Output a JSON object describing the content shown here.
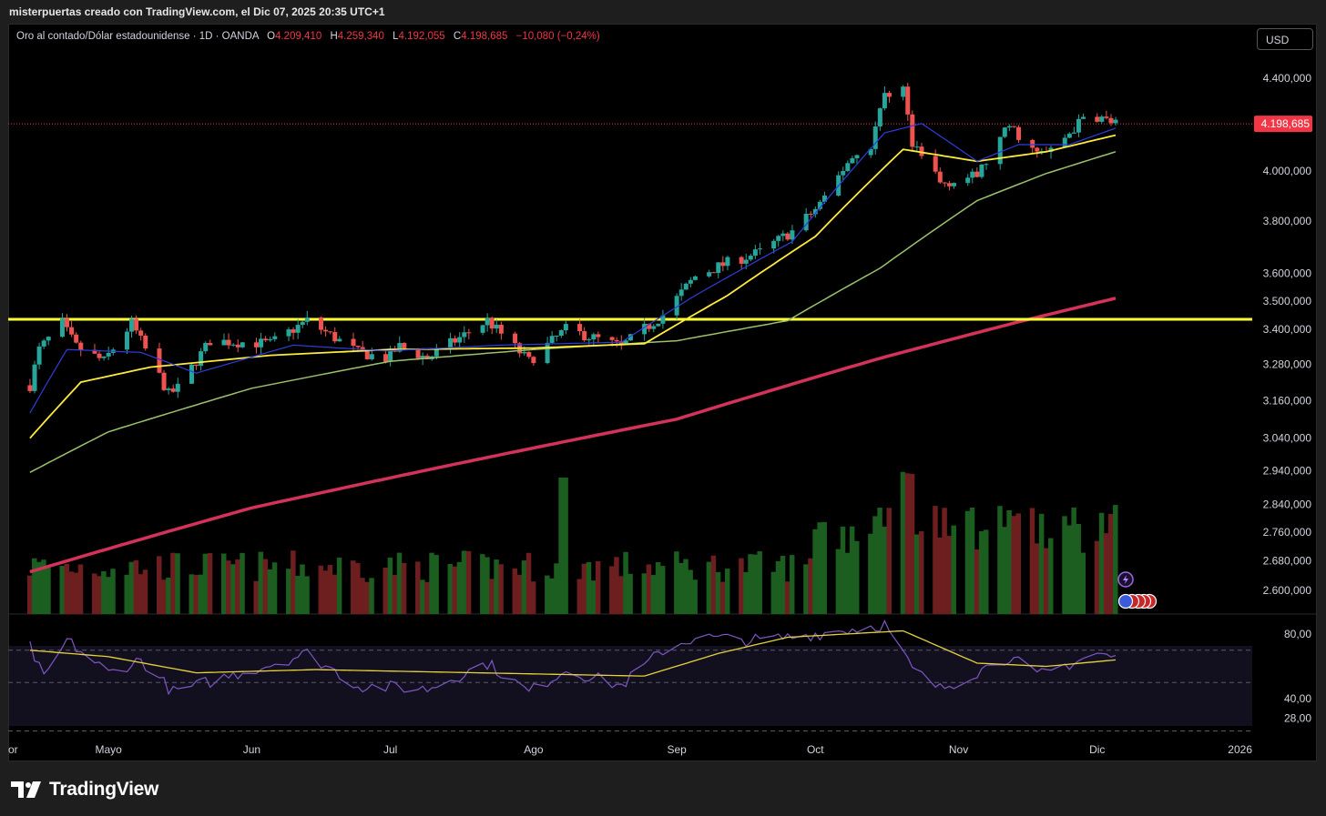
{
  "header": {
    "credit": "misterpuertas creado con TradingView.com, el Dic 07, 2025 20:35 UTC+1"
  },
  "legend": {
    "symbol": "Oro al contado/Dólar estadounidense · 1D · OANDA",
    "o_label": "O",
    "o_value": "4.209,410",
    "h_label": "H",
    "h_value": "4.259,340",
    "l_label": "L",
    "l_value": "4.192,055",
    "c_label": "C",
    "c_value": "4.198,685",
    "change": "−10,080 (−0,24%)"
  },
  "currency_button": "USD",
  "footer": {
    "brand": "TradingView"
  },
  "colors": {
    "up": "#26a69a",
    "down": "#ef5350",
    "vol_up": "#1b5e20",
    "vol_down": "#6d1f1f",
    "ema_fast": "#2f3ddc",
    "ema_mid": "#ffeb3b",
    "ema_slow": "#9bc26b",
    "sma_long": "#d3325a",
    "hline": "#ffff33",
    "rsi": "#7e57c2",
    "rsi_ma": "#e6d23a",
    "price_badge": "#f23645"
  },
  "chart_data": [
    {
      "type": "candlestick",
      "title": "Oro al contado/Dólar estadounidense · 1D · OANDA",
      "y_scale": "log",
      "ylim": [
        2560,
        4500
      ],
      "y_ticks": [
        "4.400,000",
        "4.000,000",
        "3.800,000",
        "3.600,000",
        "3.500,000",
        "3.400,000",
        "3.280,000",
        "3.160,000",
        "3.040,000",
        "2.940,000",
        "2.840,000",
        "2.760,000",
        "2.680,000",
        "2.600,000"
      ],
      "y_tick_values": [
        4400,
        4000,
        3800,
        3600,
        3500,
        3400,
        3280,
        3160,
        3040,
        2940,
        2840,
        2760,
        2680,
        2600
      ],
      "x_labels": [
        "or",
        "Mayo",
        "Jun",
        "Jul",
        "Ago",
        "Sep",
        "Oct",
        "Nov",
        "Dic",
        "2026"
      ],
      "last_price": 4198.685,
      "last_price_label": "4.198,685",
      "horizontal_line": 3435,
      "close_keypoints": [
        [
          "2025-04-14",
          3210
        ],
        [
          "2025-04-16",
          3330
        ],
        [
          "2025-04-21",
          3420
        ],
        [
          "2025-04-22",
          3390
        ],
        [
          "2025-04-24",
          3340
        ],
        [
          "2025-04-30",
          3290
        ],
        [
          "2025-05-06",
          3420
        ],
        [
          "2025-05-14",
          3180
        ],
        [
          "2025-05-16",
          3200
        ],
        [
          "2025-05-23",
          3360
        ],
        [
          "2025-06-05",
          3350
        ],
        [
          "2025-06-13",
          3430
        ],
        [
          "2025-06-24",
          3320
        ],
        [
          "2025-06-30",
          3300
        ],
        [
          "2025-07-03",
          3340
        ],
        [
          "2025-07-09",
          3300
        ],
        [
          "2025-07-22",
          3430
        ],
        [
          "2025-07-31",
          3290
        ],
        [
          "2025-08-08",
          3400
        ],
        [
          "2025-08-20",
          3340
        ],
        [
          "2025-08-29",
          3450
        ],
        [
          "2025-09-05",
          3590
        ],
        [
          "2025-09-12",
          3640
        ],
        [
          "2025-09-19",
          3680
        ],
        [
          "2025-09-26",
          3760
        ],
        [
          "2025-10-03",
          3880
        ],
        [
          "2025-10-08",
          4040
        ],
        [
          "2025-10-13",
          4110
        ],
        [
          "2025-10-16",
          4330
        ],
        [
          "2025-10-20",
          4360
        ],
        [
          "2025-10-22",
          4100
        ],
        [
          "2025-10-27",
          3990
        ],
        [
          "2025-10-28",
          3950
        ],
        [
          "2025-11-05",
          3980
        ],
        [
          "2025-11-12",
          4190
        ],
        [
          "2025-11-18",
          4070
        ],
        [
          "2025-11-21",
          4080
        ],
        [
          "2025-11-28",
          4220
        ],
        [
          "2025-12-01",
          4230
        ],
        [
          "2025-12-05",
          4198.685
        ]
      ],
      "ema_fast_keypoints": [
        [
          "2025-04-14",
          3120
        ],
        [
          "2025-04-22",
          3330
        ],
        [
          "2025-05-08",
          3320
        ],
        [
          "2025-05-20",
          3250
        ],
        [
          "2025-06-10",
          3345
        ],
        [
          "2025-06-30",
          3325
        ],
        [
          "2025-07-25",
          3345
        ],
        [
          "2025-08-20",
          3355
        ],
        [
          "2025-09-05",
          3520
        ],
        [
          "2025-09-26",
          3720
        ],
        [
          "2025-10-16",
          4160
        ],
        [
          "2025-10-24",
          4200
        ],
        [
          "2025-11-05",
          4040
        ],
        [
          "2025-11-14",
          4110
        ],
        [
          "2025-11-25",
          4110
        ],
        [
          "2025-12-05",
          4180
        ]
      ],
      "ema_mid_keypoints": [
        [
          "2025-04-14",
          3040
        ],
        [
          "2025-04-25",
          3220
        ],
        [
          "2025-05-10",
          3270
        ],
        [
          "2025-06-05",
          3310
        ],
        [
          "2025-07-01",
          3330
        ],
        [
          "2025-08-01",
          3335
        ],
        [
          "2025-08-25",
          3350
        ],
        [
          "2025-09-12",
          3520
        ],
        [
          "2025-10-01",
          3740
        ],
        [
          "2025-10-20",
          4090
        ],
        [
          "2025-11-05",
          4040
        ],
        [
          "2025-11-20",
          4080
        ],
        [
          "2025-12-05",
          4150
        ]
      ],
      "ema_slow_keypoints": [
        [
          "2025-04-14",
          2935
        ],
        [
          "2025-05-01",
          3060
        ],
        [
          "2025-06-01",
          3200
        ],
        [
          "2025-07-01",
          3290
        ],
        [
          "2025-08-01",
          3330
        ],
        [
          "2025-09-01",
          3360
        ],
        [
          "2025-09-25",
          3430
        ],
        [
          "2025-10-15",
          3620
        ],
        [
          "2025-11-05",
          3880
        ],
        [
          "2025-11-20",
          3990
        ],
        [
          "2025-12-05",
          4080
        ]
      ],
      "sma_long_keypoints": [
        [
          "2025-04-14",
          2650
        ],
        [
          "2025-06-01",
          2830
        ],
        [
          "2025-07-15",
          2960
        ],
        [
          "2025-09-01",
          3100
        ],
        [
          "2025-10-15",
          3300
        ],
        [
          "2025-11-15",
          3430
        ],
        [
          "2025-12-05",
          3510
        ]
      ],
      "volume_shape": "moderate through spring and summer, spike near 2025-08-08, elevated Oct–Nov with peak near 2025-10-20"
    },
    {
      "type": "line",
      "title": "RSI",
      "ylim": [
        20,
        90
      ],
      "y_ticks": [
        "80,00",
        "40,00",
        "28,00"
      ],
      "y_tick_values": [
        80,
        40,
        28
      ],
      "band": [
        70,
        30
      ],
      "midline": 50,
      "rsi_keypoints": [
        [
          "2025-04-14",
          72
        ],
        [
          "2025-04-17",
          52
        ],
        [
          "2025-04-22",
          76
        ],
        [
          "2025-05-01",
          56
        ],
        [
          "2025-05-08",
          64
        ],
        [
          "2025-05-15",
          44
        ],
        [
          "2025-06-01",
          58
        ],
        [
          "2025-06-13",
          68
        ],
        [
          "2025-06-24",
          48
        ],
        [
          "2025-07-09",
          46
        ],
        [
          "2025-07-22",
          62
        ],
        [
          "2025-07-31",
          44
        ],
        [
          "2025-08-08",
          58
        ],
        [
          "2025-08-20",
          48
        ],
        [
          "2025-08-29",
          70
        ],
        [
          "2025-09-05",
          78
        ],
        [
          "2025-09-19",
          76
        ],
        [
          "2025-10-01",
          80
        ],
        [
          "2025-10-16",
          86
        ],
        [
          "2025-10-22",
          58
        ],
        [
          "2025-10-28",
          46
        ],
        [
          "2025-11-12",
          66
        ],
        [
          "2025-11-18",
          54
        ],
        [
          "2025-12-01",
          68
        ],
        [
          "2025-12-05",
          65
        ]
      ],
      "rsi_ma_keypoints": [
        [
          "2025-04-14",
          70
        ],
        [
          "2025-05-01",
          66
        ],
        [
          "2025-05-20",
          56
        ],
        [
          "2025-06-15",
          58
        ],
        [
          "2025-07-20",
          56
        ],
        [
          "2025-08-25",
          54
        ],
        [
          "2025-09-10",
          68
        ],
        [
          "2025-09-25",
          78
        ],
        [
          "2025-10-20",
          82
        ],
        [
          "2025-11-05",
          62
        ],
        [
          "2025-11-20",
          60
        ],
        [
          "2025-12-05",
          64
        ]
      ]
    }
  ]
}
